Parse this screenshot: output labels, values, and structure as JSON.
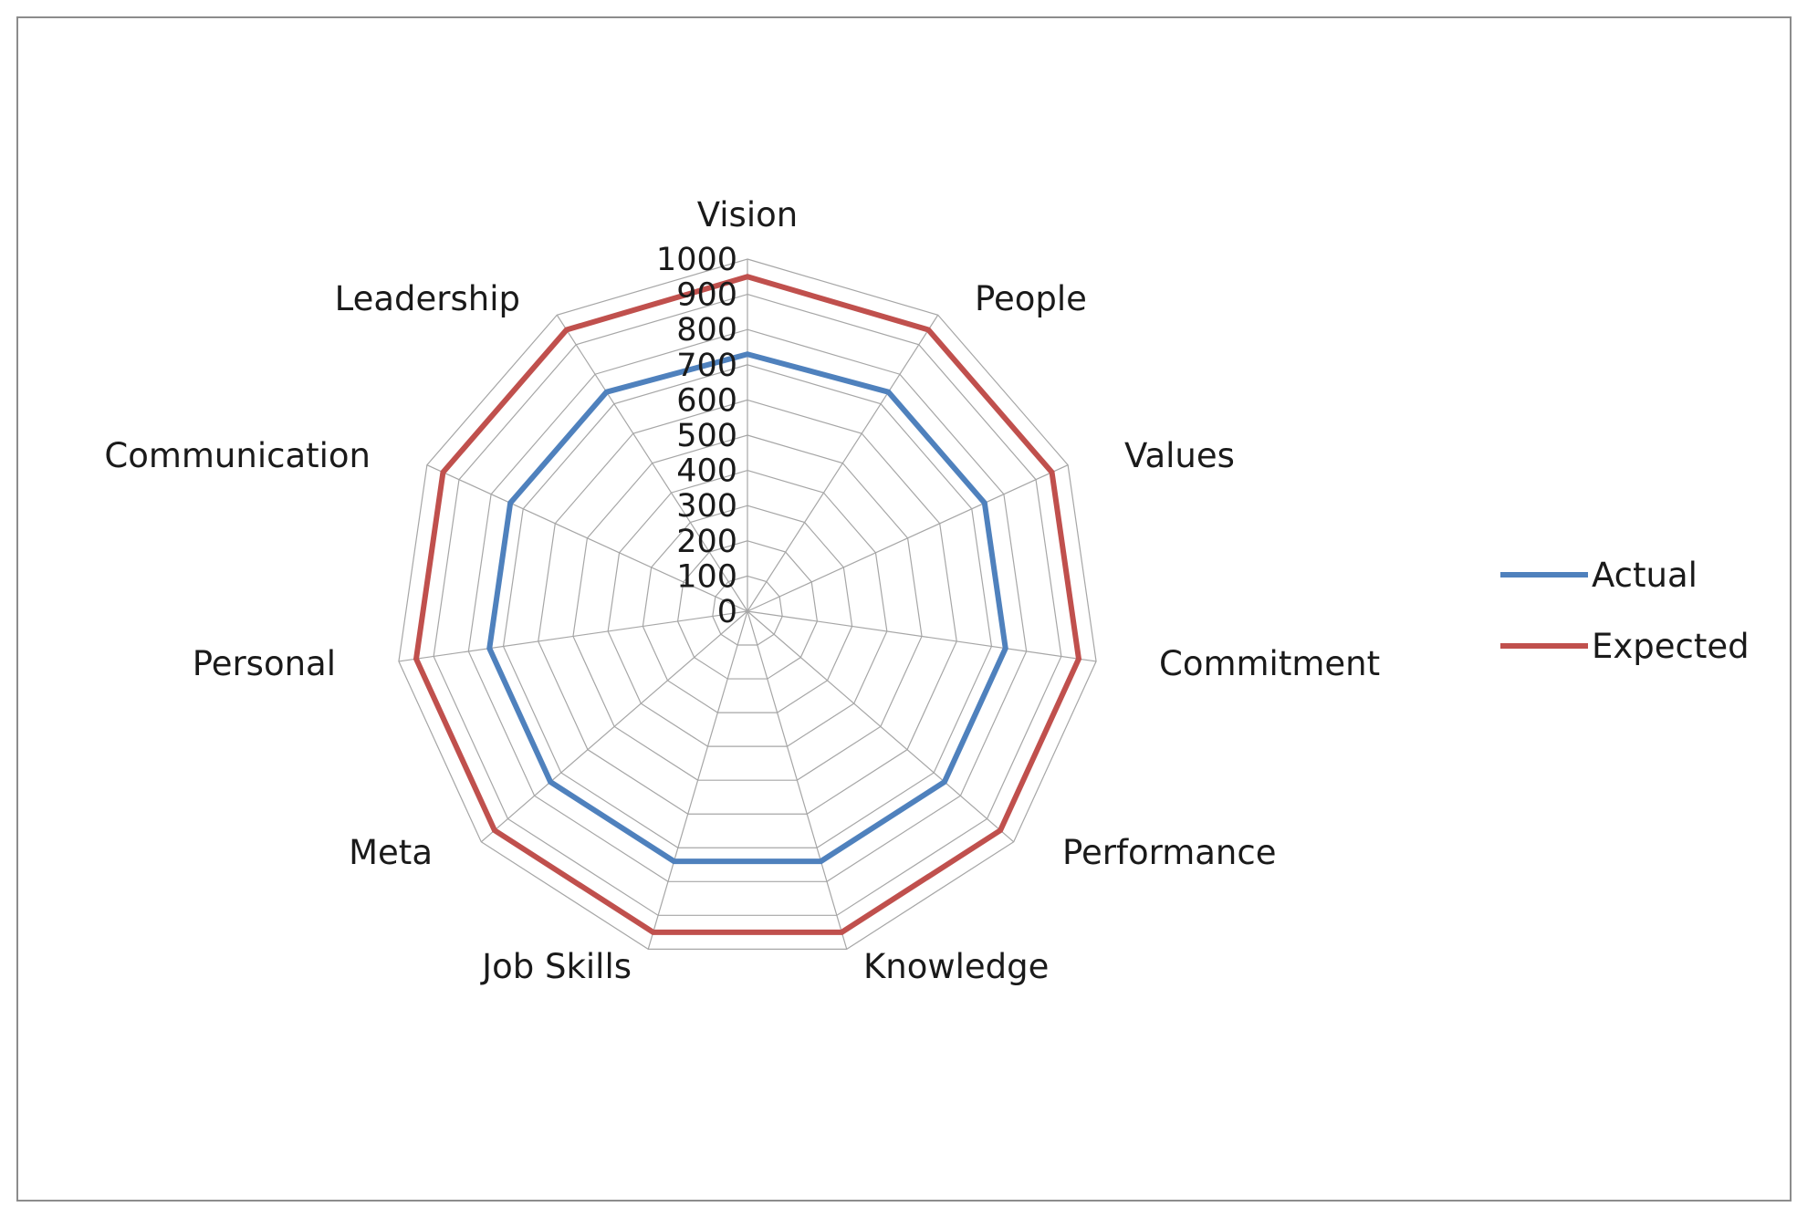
{
  "chart_data": {
    "type": "radar",
    "categories": [
      "Vision",
      "People",
      "Values",
      "Commitment",
      "Performance",
      "Knowledge",
      "Job Skills",
      "Meta",
      "Personal",
      "Communication",
      "Leadership"
    ],
    "series": [
      {
        "name": "Actual",
        "color": "#4F81BD",
        "values": [
          730,
          740,
          740,
          740,
          740,
          740,
          740,
          740,
          740,
          740,
          740
        ]
      },
      {
        "name": "Expected",
        "color": "#C0504D",
        "values": [
          950,
          950,
          950,
          950,
          950,
          950,
          950,
          950,
          950,
          950,
          950
        ]
      }
    ],
    "rlim": [
      0,
      1000
    ],
    "ticks": [
      "0",
      "100",
      "200",
      "300",
      "400",
      "500",
      "600",
      "700",
      "800",
      "900",
      "1000"
    ],
    "tick_values": [
      0,
      100,
      200,
      300,
      400,
      500,
      600,
      700,
      800,
      900,
      1000
    ],
    "grid": true,
    "legend_position": "right",
    "gridline_color": "#a6a6a6"
  }
}
